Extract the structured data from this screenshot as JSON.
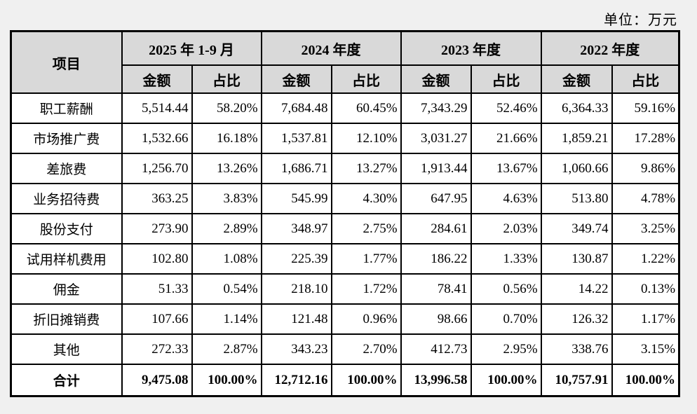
{
  "unit_label": "单位：万元",
  "table": {
    "item_header": "项目",
    "periods": [
      "2025 年 1-9 月",
      "2024 年度",
      "2023 年度",
      "2022 年度"
    ],
    "sub_headers": [
      "金额",
      "占比"
    ],
    "rows": [
      {
        "item": "职工薪酬",
        "values": [
          "5,514.44",
          "58.20%",
          "7,684.48",
          "60.45%",
          "7,343.29",
          "52.46%",
          "6,364.33",
          "59.16%"
        ]
      },
      {
        "item": "市场推广费",
        "values": [
          "1,532.66",
          "16.18%",
          "1,537.81",
          "12.10%",
          "3,031.27",
          "21.66%",
          "1,859.21",
          "17.28%"
        ]
      },
      {
        "item": "差旅费",
        "values": [
          "1,256.70",
          "13.26%",
          "1,686.71",
          "13.27%",
          "1,913.44",
          "13.67%",
          "1,060.66",
          "9.86%"
        ]
      },
      {
        "item": "业务招待费",
        "values": [
          "363.25",
          "3.83%",
          "545.99",
          "4.30%",
          "647.95",
          "4.63%",
          "513.80",
          "4.78%"
        ]
      },
      {
        "item": "股份支付",
        "values": [
          "273.90",
          "2.89%",
          "348.97",
          "2.75%",
          "284.61",
          "2.03%",
          "349.74",
          "3.25%"
        ]
      },
      {
        "item": "试用样机费用",
        "values": [
          "102.80",
          "1.08%",
          "225.39",
          "1.77%",
          "186.22",
          "1.33%",
          "130.87",
          "1.22%"
        ]
      },
      {
        "item": "佣金",
        "values": [
          "51.33",
          "0.54%",
          "218.10",
          "1.72%",
          "78.41",
          "0.56%",
          "14.22",
          "0.13%"
        ]
      },
      {
        "item": "折旧摊销费",
        "values": [
          "107.66",
          "1.14%",
          "121.48",
          "0.96%",
          "98.66",
          "0.70%",
          "126.32",
          "1.17%"
        ]
      },
      {
        "item": "其他",
        "values": [
          "272.33",
          "2.87%",
          "343.23",
          "2.70%",
          "412.73",
          "2.95%",
          "338.76",
          "3.15%"
        ]
      }
    ],
    "total": {
      "item": "合计",
      "values": [
        "9,475.08",
        "100.00%",
        "12,712.16",
        "100.00%",
        "13,996.58",
        "100.00%",
        "10,757.91",
        "100.00%"
      ]
    }
  }
}
